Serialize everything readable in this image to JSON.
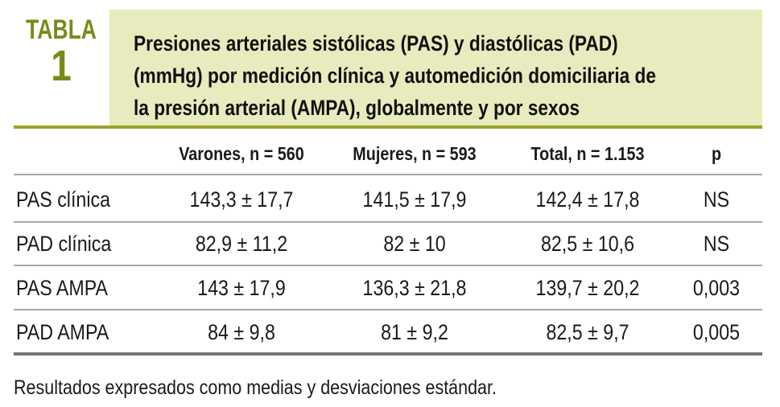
{
  "label": {
    "word": "TABLA",
    "number": "1"
  },
  "title": "Presiones arteriales sistólicas (PAS) y diastólicas (PAD) (mmHg) por medición clínica y automedición domiciliaria de la presión arterial (AMPA), globalmente y por sexos",
  "columns": [
    "Varones, n = 560",
    "Mujeres, n = 593",
    "Total, n = 1.153",
    "p"
  ],
  "rows": [
    {
      "label": "PAS clínica",
      "values": [
        "143,3 ± 17,7",
        "141,5 ± 17,9",
        "142,4 ± 17,8",
        "NS"
      ]
    },
    {
      "label": "PAD clínica",
      "values": [
        "82,9 ± 11,2",
        "82 ± 10",
        "82,5 ± 10,6",
        "NS"
      ]
    },
    {
      "label": "PAS AMPA",
      "values": [
        "143 ± 17,9",
        "136,3 ± 21,8",
        "139,7 ± 20,2",
        "0,003"
      ]
    },
    {
      "label": "PAD AMPA",
      "values": [
        "84 ± 9,8",
        "81 ± 9,2",
        "82,5 ± 9,7",
        "0,005"
      ]
    }
  ],
  "footnote": "Resultados expresados como medias y desviaciones estándar.",
  "colors": {
    "accent": "#7a8a1a",
    "title_bg": "#e8ebbd",
    "rule": "#9aa229"
  }
}
